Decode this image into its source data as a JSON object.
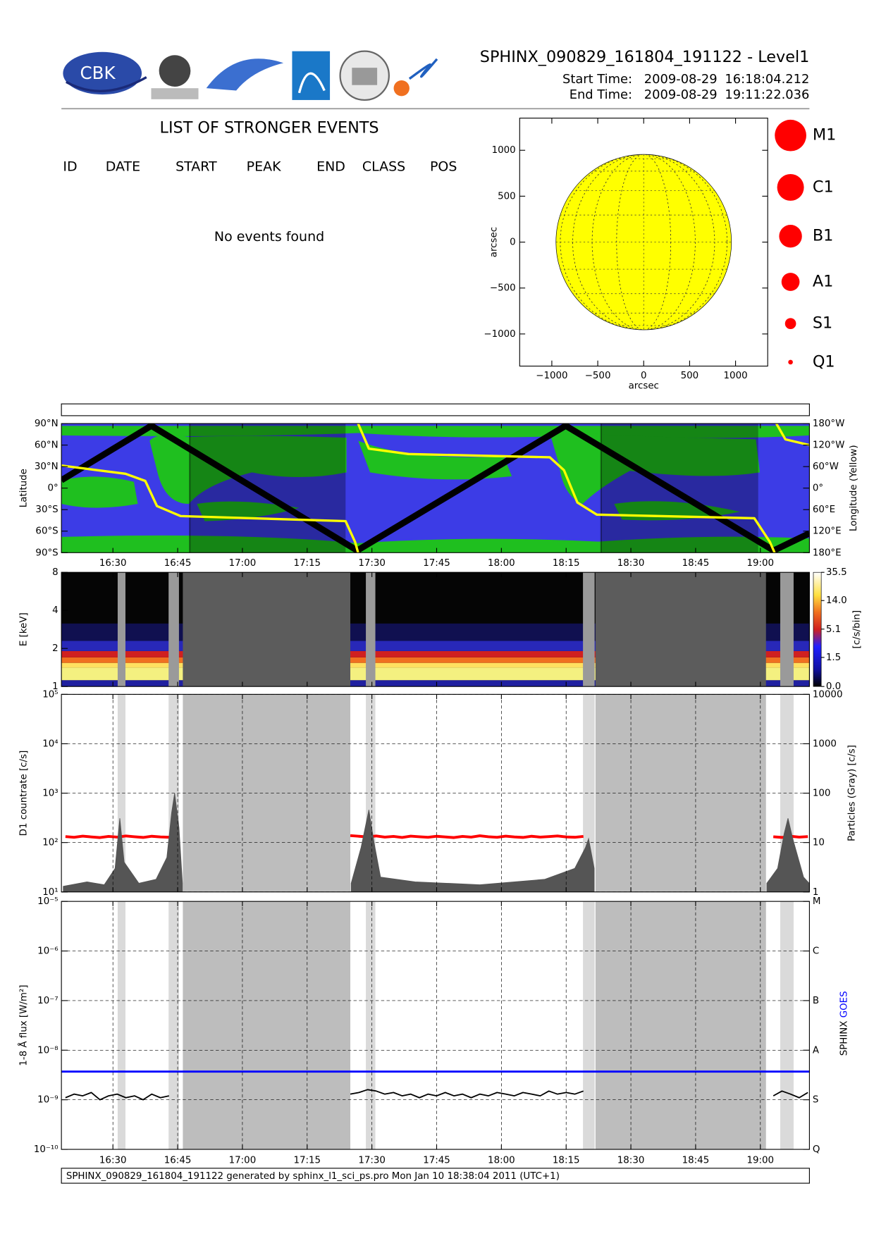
{
  "header": {
    "logo_text": "CBK",
    "title": "SPHINX_090829_161804_191122 - Level1",
    "start_label": "Start Time:",
    "start_date": "2009-08-29",
    "start_time": "16:18:04.212",
    "end_label": "End Time:",
    "end_date": "2009-08-29",
    "end_time": "19:11:22.036"
  },
  "events": {
    "title": "LIST OF STRONGER EVENTS",
    "columns": [
      "ID",
      "DATE",
      "START",
      "PEAK",
      "END",
      "CLASS",
      "POS"
    ],
    "message": "No events found"
  },
  "footer": "SPHINX_090829_161804_191122 generated by sphinx_l1_sci_ps.pro Mon Jan 10 18:38:04 2011 (UTC+1)",
  "chart_data": [
    {
      "type": "disk",
      "xlabel": "arcsec",
      "ylabel": "arcsec",
      "xlim": [
        -1350,
        1350
      ],
      "ylim": [
        -1350,
        1350
      ],
      "xticks": [
        {
          "value": -1000,
          "label": "−1000"
        },
        {
          "value": -500,
          "label": "−500"
        },
        0,
        500,
        1000
      ],
      "yticks": [
        {
          "value": -1000,
          "label": "−1000"
        },
        {
          "value": -500,
          "label": "−500"
        },
        0,
        500,
        1000
      ],
      "disk_radius": 955,
      "color": "#ffff00",
      "legend": [
        "M1",
        "C1",
        "B1",
        "A1",
        "S1",
        "Q1"
      ],
      "legend_color": "#ff0000"
    },
    {
      "type": "map",
      "ylabel": "Latitude",
      "y2label": "Longitude (Yellow)",
      "xlim": [
        978.067,
        1151.367
      ],
      "xticks": [
        {
          "value": 990,
          "label": "16:30"
        },
        {
          "value": 1005,
          "label": "16:45"
        },
        {
          "value": 1020,
          "label": "17:00"
        },
        {
          "value": 1035,
          "label": "17:15"
        },
        {
          "value": 1050,
          "label": "17:30"
        },
        {
          "value": 1065,
          "label": "17:45"
        },
        {
          "value": 1080,
          "label": "18:00"
        },
        {
          "value": 1095,
          "label": "18:15"
        },
        {
          "value": 1110,
          "label": "18:30"
        },
        {
          "value": 1125,
          "label": "18:45"
        },
        {
          "value": 1140,
          "label": "19:00"
        }
      ],
      "ylim": [
        -90,
        90
      ],
      "yticks": [
        {
          "value": -90,
          "label": "90°S"
        },
        {
          "value": -60,
          "label": "60°S"
        },
        {
          "value": -30,
          "label": "30°S"
        },
        {
          "value": 0,
          "label": "0°"
        },
        {
          "value": 30,
          "label": "30°N"
        },
        {
          "value": 60,
          "label": "60°N"
        },
        {
          "value": 90,
          "label": "90°N"
        }
      ],
      "y2lim": [
        -180,
        180
      ],
      "y2ticks": [
        {
          "value": -180,
          "label": "180°E"
        },
        {
          "value": -120,
          "label": "120°E"
        },
        {
          "value": -60,
          "label": "60°E"
        },
        {
          "value": 0,
          "label": "0°"
        },
        {
          "value": 60,
          "label": "60°W"
        },
        {
          "value": 120,
          "label": "120°W"
        },
        {
          "value": 180,
          "label": "180°W"
        }
      ],
      "night": [
        [
          1007.8,
          1043.9
        ],
        [
          1103.1,
          1139.5
        ]
      ],
      "series": [
        {
          "color": "#000000",
          "x": [
            978.067,
            998.9,
            1046.6,
            1094.9,
            1143.1,
            1151.367
          ],
          "values": [
            11,
            87,
            -87,
            87,
            -87,
            -63
          ]
        },
        {
          "color": "#ffff00",
          "axis": "y2",
          "x": [
            978.067,
            992.9,
            997.5,
            1000.2,
            1005.7,
            1043.9,
            1046.1,
            1046.8,
            1046.8,
            1046.8,
            1049.3,
            1058.5,
            1091.2,
            1094.5,
            1097.6,
            1102.1,
            1138.6,
            1142.2,
            1143.3,
            1143.5,
            1143.7,
            1145.8,
            1151.367
          ],
          "values": [
            63,
            40,
            20,
            -50,
            -78,
            -92,
            -150,
            -180,
            null,
            180,
            110,
            95,
            86,
            50,
            -40,
            -74,
            -84,
            -150,
            -180,
            null,
            180,
            136,
            120
          ]
        }
      ]
    },
    {
      "type": "spectrogram",
      "ylabel": "E [keV]",
      "log": true,
      "ylim": [
        1,
        8
      ],
      "yticks": [
        1,
        2,
        4,
        8
      ],
      "xlim": [
        978.067,
        1151.367
      ],
      "colorbar": {
        "label": "[c/s/bin]",
        "ticks": [
          {
            "value": 0,
            "label": "0.0"
          },
          1.5,
          5.1,
          {
            "value": 14,
            "label": "14.0"
          },
          35.5
        ]
      }
    },
    {
      "type": "line",
      "ylabel": "D1 countrate [c/s]",
      "y2label": "Particles (Gray) [c/s]",
      "log": true,
      "xlim": [
        978.067,
        1151.367
      ],
      "ylim": [
        10,
        100000
      ],
      "yticks": [
        {
          "value": 10,
          "label": "10¹"
        },
        {
          "value": 100,
          "label": "10²"
        },
        {
          "value": 1000,
          "label": "10³"
        },
        {
          "value": 10000,
          "label": "10⁴"
        },
        {
          "value": 100000,
          "label": "10⁵"
        }
      ],
      "y2lim": [
        1,
        10000
      ],
      "y2ticks": [
        1,
        10,
        100,
        1000,
        10000
      ],
      "grid": true,
      "shaded": [
        [
          991.1,
          992.9
        ],
        [
          1002.9,
          1005.3
        ],
        [
          1006.2,
          1045.0
        ],
        [
          1048.6,
          1050.8
        ],
        [
          1098.9,
          1101.6
        ],
        [
          1101.8,
          1141.3
        ],
        [
          1144.6,
          1147.7
        ]
      ],
      "series": [
        {
          "color": "#ff0000",
          "x": [
            979,
            981,
            983,
            985,
            987,
            989,
            991,
            993,
            995,
            997,
            999,
            1001,
            1003,
            1024,
            1045,
            1047,
            1049,
            1051,
            1053,
            1055,
            1057,
            1059,
            1061,
            1063,
            1065,
            1067,
            1069,
            1071,
            1073,
            1075,
            1077,
            1079,
            1081,
            1083,
            1085,
            1087,
            1089,
            1091,
            1093,
            1095,
            1097,
            1099,
            1120,
            1143,
            1145,
            1147,
            1149,
            1151
          ],
          "values": [
            132,
            128,
            135,
            130,
            126,
            133,
            129,
            136,
            131,
            127,
            134,
            130,
            128,
            null,
            138,
            134,
            130,
            136,
            129,
            133,
            127,
            135,
            131,
            128,
            134,
            130,
            126,
            133,
            129,
            137,
            131,
            128,
            135,
            130,
            127,
            134,
            129,
            132,
            136,
            130,
            128,
            133,
            null,
            131,
            127,
            134,
            129,
            132
          ]
        },
        {
          "color": "#555555",
          "axis": "y2",
          "x": [
            978.5,
            984,
            988,
            990.5,
            991.6,
            992.6,
            996,
            1000,
            1002.5,
            1003.6,
            1004.3,
            1005.3,
            1006.1,
            1025,
            1045.2,
            1047.5,
            1049.3,
            1050.5,
            1052,
            1060,
            1075,
            1090,
            1097,
            1099.5,
            1100.2,
            1101.5,
            1120,
            1141.5,
            1144,
            1145.5,
            1146.4,
            1147.5,
            1150,
            1151.3
          ],
          "values": [
            1.3,
            1.6,
            1.4,
            3,
            31,
            4,
            1.5,
            1.8,
            5,
            40,
            100,
            20,
            1.5,
            null,
            1.5,
            8,
            46,
            10,
            2,
            1.6,
            1.4,
            1.8,
            3,
            8,
            12,
            3,
            null,
            1.5,
            3,
            15,
            31,
            12,
            2,
            1.5
          ]
        }
      ]
    },
    {
      "type": "line",
      "ylabel": "1-8 Å flux [W/m²]",
      "log": true,
      "xlim": [
        978.067,
        1151.367
      ],
      "xticks": [
        {
          "value": 990,
          "label": "16:30"
        },
        {
          "value": 1005,
          "label": "16:45"
        },
        {
          "value": 1020,
          "label": "17:00"
        },
        {
          "value": 1035,
          "label": "17:15"
        },
        {
          "value": 1050,
          "label": "17:30"
        },
        {
          "value": 1065,
          "label": "17:45"
        },
        {
          "value": 1080,
          "label": "18:00"
        },
        {
          "value": 1095,
          "label": "18:15"
        },
        {
          "value": 1110,
          "label": "18:30"
        },
        {
          "value": 1125,
          "label": "18:45"
        },
        {
          "value": 1140,
          "label": "19:00"
        }
      ],
      "ylim": [
        1e-10,
        1e-05
      ],
      "yticks": [
        {
          "value": 1e-10,
          "label": "10⁻¹⁰"
        },
        {
          "value": 1e-09,
          "label": "10⁻⁹"
        },
        {
          "value": 1e-08,
          "label": "10⁻⁸"
        },
        {
          "value": 1e-07,
          "label": "10⁻⁷"
        },
        {
          "value": 1e-06,
          "label": "10⁻⁶"
        },
        {
          "value": 1e-05,
          "label": "10⁻⁵"
        }
      ],
      "y2lim": [
        1e-10,
        1e-05
      ],
      "y2ticks": [
        {
          "value": 1e-10,
          "label": "Q"
        },
        {
          "value": 1e-09,
          "label": "S"
        },
        {
          "value": 1e-08,
          "label": "A"
        },
        {
          "value": 1e-07,
          "label": "B"
        },
        {
          "value": 1e-06,
          "label": "C"
        },
        {
          "value": 1e-05,
          "label": "M"
        }
      ],
      "grid": true,
      "series": [
        {
          "name": "SPHINX",
          "color": "#000000",
          "x": [
            979,
            981,
            983,
            985,
            987,
            989,
            991,
            993,
            995,
            997,
            999,
            1001,
            1003,
            1024,
            1045,
            1047,
            1049,
            1051,
            1053,
            1055,
            1057,
            1059,
            1061,
            1063,
            1065,
            1067,
            1069,
            1071,
            1073,
            1075,
            1077,
            1079,
            1081,
            1083,
            1085,
            1087,
            1089,
            1091,
            1093,
            1095,
            1097,
            1099,
            1120,
            1143,
            1145,
            1147,
            1149,
            1151
          ],
          "values": [
            1.1e-09,
            1.3e-09,
            1.2e-09,
            1.4e-09,
            1e-09,
            1.2e-09,
            1.3e-09,
            1.1e-09,
            1.2e-09,
            1e-09,
            1.3e-09,
            1.1e-09,
            1.2e-09,
            null,
            1.3e-09,
            1.4e-09,
            1.6e-09,
            1.5e-09,
            1.3e-09,
            1.4e-09,
            1.2e-09,
            1.3e-09,
            1.1e-09,
            1.3e-09,
            1.2e-09,
            1.4e-09,
            1.2e-09,
            1.3e-09,
            1.1e-09,
            1.3e-09,
            1.2e-09,
            1.4e-09,
            1.3e-09,
            1.2e-09,
            1.4e-09,
            1.3e-09,
            1.2e-09,
            1.5e-09,
            1.3e-09,
            1.4e-09,
            1.3e-09,
            1.5e-09,
            null,
            1.2e-09,
            1.5e-09,
            1.3e-09,
            1.1e-09,
            1.4e-09
          ]
        },
        {
          "name": "GOES",
          "color": "#0000ff",
          "x": [
            978.067,
            1151.367
          ],
          "values": [
            3.7e-09,
            3.7e-09
          ]
        }
      ]
    }
  ]
}
